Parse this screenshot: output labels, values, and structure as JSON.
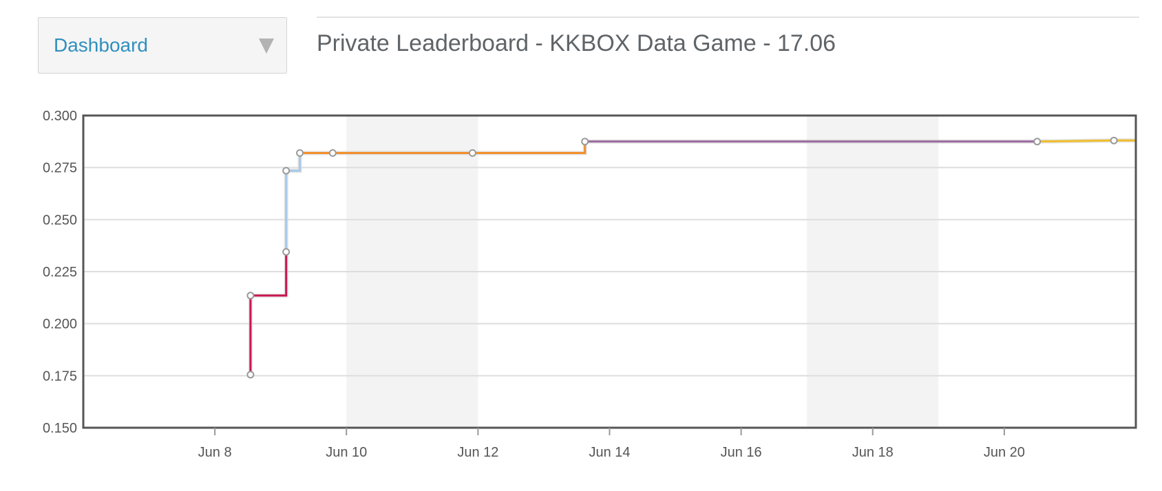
{
  "header": {
    "dropdown_label": "Dashboard",
    "page_title": "Private Leaderboard - KKBOX Data Game - 17.06"
  },
  "icons": {
    "dropdown_caret": "chevron-down-icon"
  },
  "chart_data": {
    "type": "line",
    "step": true,
    "title": "",
    "xlabel": "",
    "ylabel": "",
    "x_type": "date",
    "xlim": [
      "2017-06-06",
      "2017-06-22"
    ],
    "ylim": [
      0.15,
      0.3
    ],
    "y_ticks": [
      0.15,
      0.175,
      0.2,
      0.225,
      0.25,
      0.275,
      0.3
    ],
    "y_tick_labels": [
      "0.150",
      "0.175",
      "0.200",
      "0.225",
      "0.250",
      "0.275",
      "0.300"
    ],
    "x_ticks": [
      "2017-06-08",
      "2017-06-10",
      "2017-06-12",
      "2017-06-14",
      "2017-06-16",
      "2017-06-18",
      "2017-06-20"
    ],
    "x_tick_labels": [
      "Jun 8",
      "Jun 10",
      "Jun 12",
      "Jun 14",
      "Jun 16",
      "Jun 18",
      "Jun 20"
    ],
    "weekend_bands": [
      [
        "2017-06-10",
        "2017-06-12"
      ],
      [
        "2017-06-17",
        "2017-06-19"
      ]
    ],
    "grid": true,
    "legend": "none",
    "series": [
      {
        "color": "#c8174f",
        "points": [
          [
            "2017-06-08 13:00",
            0.1755
          ],
          [
            "2017-06-08 13:00",
            0.2135
          ],
          [
            "2017-06-09 02:00",
            0.2135
          ],
          [
            "2017-06-09 02:00",
            0.2345
          ]
        ]
      },
      {
        "color": "#a8c8e8",
        "points": [
          [
            "2017-06-09 02:00",
            0.2345
          ],
          [
            "2017-06-09 02:00",
            0.2735
          ],
          [
            "2017-06-09 07:00",
            0.2735
          ],
          [
            "2017-06-09 07:00",
            0.282
          ]
        ]
      },
      {
        "color": "#f28e2b",
        "points": [
          [
            "2017-06-09 07:00",
            0.282
          ],
          [
            "2017-06-09 19:00",
            0.282
          ],
          [
            "2017-06-11 22:00",
            0.282
          ],
          [
            "2017-06-13 15:00",
            0.282
          ],
          [
            "2017-06-13 15:00",
            0.2875
          ]
        ]
      },
      {
        "color": "#9b6b9e",
        "points": [
          [
            "2017-06-13 15:00",
            0.2875
          ],
          [
            "2017-06-20 12:00",
            0.2875
          ]
        ]
      },
      {
        "color": "#f1be2b",
        "points": [
          [
            "2017-06-20 12:00",
            0.2875
          ],
          [
            "2017-06-21 16:00",
            0.288
          ],
          [
            "2017-06-22 00:00",
            0.288
          ]
        ]
      }
    ],
    "markers": [
      [
        "2017-06-08 13:00",
        0.1755
      ],
      [
        "2017-06-08 13:00",
        0.2135
      ],
      [
        "2017-06-09 02:00",
        0.2345
      ],
      [
        "2017-06-09 02:00",
        0.2735
      ],
      [
        "2017-06-09 07:00",
        0.282
      ],
      [
        "2017-06-09 19:00",
        0.282
      ],
      [
        "2017-06-11 22:00",
        0.282
      ],
      [
        "2017-06-13 15:00",
        0.2875
      ],
      [
        "2017-06-20 12:00",
        0.2875
      ],
      [
        "2017-06-21 16:00",
        0.288
      ]
    ]
  }
}
